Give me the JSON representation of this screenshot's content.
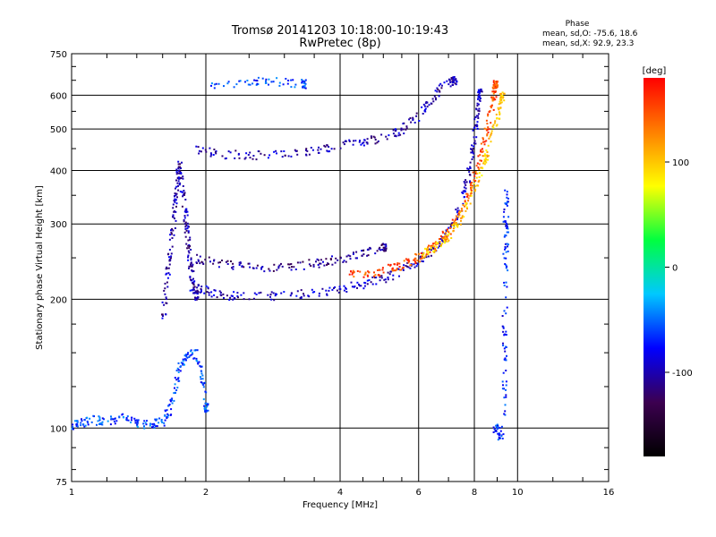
{
  "chart_data": {
    "type": "scatter",
    "title": "Tromsø 20141203 10:18:00-10:19:43",
    "subtitle": "RwPretec (8p)",
    "xlabel": "Frequency [MHz]",
    "ylabel": "Stationary phase Virtual Height [km]",
    "x_scale": "log",
    "y_scale": "log",
    "xlim": [
      1,
      16
    ],
    "ylim": [
      75,
      750
    ],
    "x_ticks": [
      1,
      2,
      4,
      6,
      8,
      10,
      16
    ],
    "y_ticks": [
      75,
      100,
      200,
      300,
      400,
      500,
      600,
      750
    ],
    "grid": true,
    "colorbar": {
      "label": "[deg]",
      "range": [
        -180,
        180
      ],
      "ticks": [
        100,
        0,
        -100
      ],
      "colors": [
        "#000000",
        "#3c0050",
        "#0000ff",
        "#00c8ff",
        "#00ff40",
        "#ffff00",
        "#ff8000",
        "#ff0000"
      ]
    },
    "stats": {
      "heading": "Phase",
      "line_o": "mean, sd,O: -75.6, 18.6",
      "line_x": "mean, sd,X:  92.9, 23.3"
    },
    "series": [
      {
        "points": [
          [
            1.0,
            102
          ],
          [
            1.05,
            103
          ],
          [
            1.1,
            105
          ],
          [
            1.2,
            104
          ],
          [
            1.3,
            106
          ],
          [
            1.4,
            103
          ],
          [
            1.5,
            102
          ],
          [
            1.6,
            104
          ],
          [
            1.65,
            110
          ],
          [
            1.7,
            125
          ],
          [
            1.75,
            140
          ],
          [
            1.8,
            148
          ],
          [
            1.9,
            150
          ],
          [
            1.95,
            130
          ],
          [
            2.0,
            112
          ]
        ],
        "phase": -60
      },
      {
        "points": [
          [
            1.6,
            180
          ],
          [
            1.62,
            210
          ],
          [
            1.65,
            250
          ],
          [
            1.68,
            290
          ],
          [
            1.7,
            330
          ],
          [
            1.72,
            370
          ],
          [
            1.74,
            420
          ],
          [
            1.75,
            390
          ],
          [
            1.78,
            340
          ],
          [
            1.8,
            300
          ],
          [
            1.82,
            270
          ],
          [
            1.84,
            240
          ],
          [
            1.86,
            220
          ],
          [
            1.9,
            205
          ]
        ],
        "phase": -100
      },
      {
        "points": [
          [
            1.85,
            215
          ],
          [
            2.0,
            210
          ],
          [
            2.2,
            205
          ],
          [
            2.5,
            204
          ],
          [
            3.0,
            205
          ],
          [
            3.5,
            208
          ],
          [
            4.0,
            212
          ],
          [
            4.5,
            218
          ],
          [
            5.0,
            225
          ],
          [
            5.5,
            235
          ],
          [
            6.0,
            248
          ],
          [
            6.5,
            265
          ],
          [
            7.0,
            290
          ],
          [
            7.4,
            330
          ],
          [
            7.7,
            380
          ],
          [
            7.9,
            440
          ],
          [
            8.0,
            500
          ],
          [
            8.1,
            560
          ],
          [
            8.2,
            610
          ]
        ],
        "phase": -95
      },
      {
        "points": [
          [
            1.9,
            250
          ],
          [
            2.1,
            245
          ],
          [
            2.4,
            240
          ],
          [
            2.8,
            238
          ],
          [
            3.2,
            240
          ],
          [
            3.6,
            245
          ],
          [
            4.0,
            250
          ],
          [
            4.5,
            258
          ],
          [
            5.0,
            266
          ]
        ],
        "phase": -110
      },
      {
        "points": [
          [
            4.2,
            228
          ],
          [
            4.6,
            230
          ],
          [
            5.0,
            234
          ],
          [
            5.4,
            240
          ],
          [
            5.8,
            248
          ],
          [
            6.2,
            258
          ],
          [
            6.6,
            272
          ],
          [
            7.0,
            290
          ],
          [
            7.4,
            320
          ],
          [
            7.8,
            360
          ],
          [
            8.1,
            410
          ],
          [
            8.4,
            470
          ],
          [
            8.6,
            530
          ],
          [
            8.8,
            600
          ],
          [
            8.9,
            640
          ]
        ],
        "phase": 150
      },
      {
        "points": [
          [
            6.0,
            252
          ],
          [
            6.4,
            262
          ],
          [
            6.8,
            275
          ],
          [
            7.2,
            295
          ],
          [
            7.6,
            325
          ],
          [
            8.0,
            370
          ],
          [
            8.4,
            420
          ],
          [
            8.7,
            480
          ],
          [
            9.0,
            540
          ],
          [
            9.2,
            600
          ]
        ],
        "phase": 100
      },
      {
        "points": [
          [
            1.9,
            450
          ],
          [
            2.1,
            440
          ],
          [
            2.5,
            435
          ],
          [
            3.0,
            440
          ],
          [
            3.5,
            450
          ],
          [
            4.0,
            460
          ],
          [
            4.5,
            470
          ],
          [
            5.0,
            480
          ],
          [
            5.5,
            500
          ],
          [
            6.0,
            540
          ],
          [
            6.4,
            590
          ],
          [
            6.8,
            640
          ],
          [
            7.2,
            650
          ]
        ],
        "phase": -100
      },
      {
        "points": [
          [
            2.05,
            640
          ],
          [
            2.5,
            645
          ],
          [
            2.8,
            650
          ],
          [
            3.3,
            640
          ]
        ],
        "phase": -60
      },
      {
        "points": [
          [
            9.3,
            110
          ],
          [
            9.3,
            140
          ],
          [
            9.3,
            170
          ],
          [
            9.4,
            250
          ],
          [
            9.4,
            300
          ],
          [
            9.4,
            360
          ],
          [
            9.2,
            95
          ],
          [
            8.9,
            100
          ]
        ],
        "phase": -70
      }
    ]
  }
}
